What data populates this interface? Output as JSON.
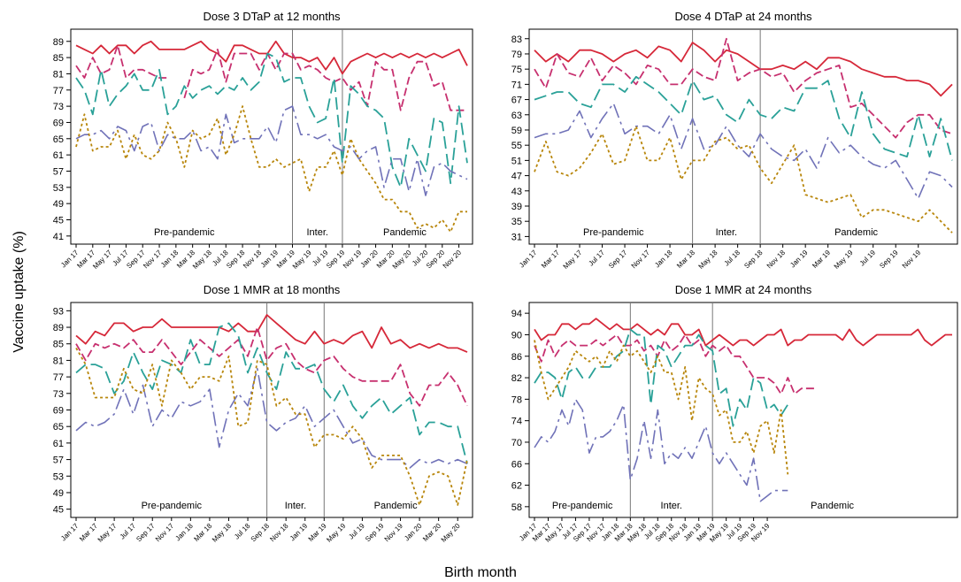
{
  "figure": {
    "ylabel": "Vaccine uptake (%)",
    "xlabel": "Birth month"
  },
  "colors": [
    "#d62839",
    "#c7306f",
    "#2aa198",
    "#7072b8",
    "#b8860b"
  ],
  "chart_data": [
    {
      "type": "line",
      "title": "Dose 3 DTaP at 12 months",
      "yticks": [
        41,
        45,
        49,
        53,
        57,
        61,
        65,
        69,
        73,
        77,
        81,
        85,
        89
      ],
      "ylim": [
        39,
        92
      ],
      "xticks": [
        "Jan 17",
        "Mar 17",
        "May 17",
        "Jul 17",
        "Sep 17",
        "Nov 17",
        "Jan 18",
        "Mar 18",
        "May 18",
        "Jul 18",
        "Sep 18",
        "Nov 18",
        "Jan 19",
        "Mar 19",
        "May 19",
        "Jul 19",
        "Sep 19",
        "Nov 19",
        "Jan 20",
        "Mar 20",
        "May 20",
        "Jul 20",
        "Sep 20",
        "Nov 20"
      ],
      "periods": [
        {
          "label": "Pre-pandemic"
        },
        {
          "label": "Inter."
        },
        {
          "label": "Pandemic"
        }
      ],
      "dividers": [
        26,
        32
      ],
      "series": [
        {
          "values": [
            88,
            87,
            86,
            88,
            86,
            88,
            88,
            86,
            88,
            89,
            87,
            87,
            87,
            87,
            88,
            89,
            87,
            86,
            84,
            88,
            88,
            87,
            86,
            86,
            89,
            86,
            85,
            85,
            84,
            85,
            82,
            85,
            81,
            84,
            85,
            86,
            85,
            86,
            85,
            86,
            85,
            86,
            85,
            86,
            85,
            86,
            87,
            83
          ]
        },
        {
          "values": [
            83,
            80,
            85,
            81,
            82,
            88,
            80,
            82,
            82,
            81,
            80,
            80,
            null,
            75,
            82,
            81,
            82,
            87,
            79,
            86,
            86,
            86,
            82,
            86,
            82,
            86,
            86,
            82,
            83,
            82,
            80,
            79,
            80,
            77,
            79,
            73,
            84,
            82,
            82,
            72,
            80,
            84,
            84,
            78,
            79,
            72,
            72,
            72
          ]
        },
        {
          "values": [
            80,
            77,
            71,
            82,
            73,
            76,
            78,
            81,
            77,
            77,
            82,
            71,
            73,
            78,
            75,
            77,
            78,
            76,
            78,
            77,
            80,
            77,
            79,
            86,
            85,
            79,
            80,
            80,
            73,
            69,
            70,
            80,
            59,
            78,
            76,
            73,
            72,
            70,
            58,
            53,
            65,
            61,
            57,
            70,
            69,
            54,
            73,
            59
          ]
        },
        {
          "values": [
            65,
            66,
            66,
            67,
            65,
            68,
            67,
            62,
            68,
            69,
            62,
            66,
            65,
            65,
            67,
            62,
            63,
            60,
            71,
            64,
            65,
            65,
            65,
            68,
            64,
            72,
            73,
            66,
            66,
            65,
            66,
            63,
            62,
            63,
            60,
            62,
            63,
            53,
            60,
            60,
            52,
            60,
            51,
            58,
            59,
            57,
            56,
            55
          ]
        },
        {
          "values": [
            63,
            71,
            62,
            63,
            63,
            67,
            60,
            66,
            61,
            60,
            62,
            69,
            65,
            58,
            67,
            65,
            66,
            70,
            61,
            66,
            73,
            65,
            58,
            58,
            60,
            58,
            59,
            60,
            52,
            58,
            58,
            62,
            56,
            65,
            60,
            57,
            54,
            50,
            50,
            47,
            47,
            43,
            44,
            43,
            45,
            42,
            47,
            47
          ]
        }
      ]
    },
    {
      "type": "line",
      "title": "Dose 4 DTaP at 24 months",
      "yticks": [
        31,
        35,
        39,
        43,
        47,
        51,
        55,
        59,
        63,
        67,
        71,
        75,
        79,
        83
      ],
      "ylim": [
        29,
        85.5
      ],
      "xticks": [
        "Jan 17",
        "Mar 17",
        "May 17",
        "Jul 17",
        "Sep 17",
        "Nov 17",
        "Jan 18",
        "Mar 18",
        "May 18",
        "Jul 18",
        "Sep 18",
        "Nov 18",
        "Jan 19",
        "Mar 19",
        "May 19",
        "Jul 19",
        "Sep 19",
        "Nov 19"
      ],
      "periods": [
        {
          "label": "Pre-pandemic"
        },
        {
          "label": "Inter."
        },
        {
          "label": "Pandemic"
        }
      ],
      "dividers": [
        14,
        20
      ],
      "series": [
        {
          "values": [
            80,
            77,
            79,
            77,
            80,
            80,
            79,
            77,
            79,
            80,
            78,
            81,
            80,
            77,
            82,
            80,
            77,
            80,
            79,
            77,
            75,
            75,
            76,
            75,
            77,
            75,
            78,
            78,
            77,
            75,
            74,
            73,
            73,
            72,
            72,
            71,
            68,
            71
          ]
        },
        {
          "values": [
            75,
            70,
            79,
            74,
            73,
            78,
            72,
            76,
            74,
            71,
            76,
            75,
            71,
            71,
            75,
            73,
            72,
            83,
            72,
            74,
            75,
            73,
            74,
            69,
            72,
            74,
            75,
            76,
            65,
            66,
            63,
            60,
            57,
            61,
            63,
            63,
            59,
            58
          ]
        },
        {
          "values": [
            67,
            68,
            69,
            69,
            66,
            65,
            71,
            71,
            69,
            73,
            71,
            69,
            66,
            63,
            72,
            67,
            68,
            63,
            61,
            67,
            63,
            62,
            65,
            64,
            70,
            70,
            72,
            62,
            57,
            69,
            58,
            54,
            53,
            52,
            63,
            52,
            62,
            51
          ]
        },
        {
          "values": [
            57,
            58,
            58,
            59,
            64,
            57,
            62,
            66,
            58,
            60,
            60,
            58,
            63,
            54,
            62,
            54,
            55,
            60,
            55,
            52,
            58,
            54,
            52,
            51,
            54,
            49,
            57,
            53,
            55,
            52,
            50,
            49,
            51,
            46,
            41,
            48,
            47,
            44
          ]
        },
        {
          "values": [
            48,
            56,
            48,
            47,
            49,
            53,
            58,
            50,
            51,
            60,
            51,
            51,
            57,
            46,
            51,
            51,
            56,
            57,
            54,
            55,
            49,
            45,
            50,
            55,
            42,
            41,
            40,
            41,
            42,
            36,
            38,
            38,
            37,
            36,
            35,
            38,
            35,
            32
          ]
        }
      ]
    },
    {
      "type": "line",
      "title": "Dose 1 MMR at 18 months",
      "yticks": [
        45,
        49,
        53,
        57,
        61,
        65,
        69,
        73,
        77,
        81,
        85,
        89,
        93
      ],
      "ylim": [
        43,
        95
      ],
      "xticks": [
        "Jan 17",
        "Mar 17",
        "May 17",
        "Jul 17",
        "Sep 17",
        "Nov 17",
        "Jan 18",
        "Mar 18",
        "May 18",
        "Jul 18",
        "Sep 18",
        "Nov 18",
        "Jan 19",
        "Mar 19",
        "May 19",
        "Jul 19",
        "Sep 19",
        "Nov 19",
        "Jan 20",
        "Mar 20",
        "May 20"
      ],
      "periods": [
        {
          "label": "Pre-pandemic"
        },
        {
          "label": "Inter."
        },
        {
          "label": "Pandemic"
        }
      ],
      "dividers": [
        20,
        26
      ],
      "series": [
        {
          "values": [
            87,
            85,
            88,
            87,
            90,
            90,
            88,
            89,
            89,
            91,
            89,
            89,
            89,
            89,
            89,
            89,
            88,
            90,
            88,
            88,
            92,
            90,
            88,
            86,
            85,
            88,
            85,
            86,
            85,
            87,
            88,
            84,
            89,
            85,
            86,
            84,
            85,
            84,
            85,
            84,
            84,
            83
          ]
        },
        {
          "values": [
            85,
            81,
            85,
            84,
            85,
            84,
            86,
            83,
            83,
            86,
            83,
            80,
            83,
            86,
            84,
            82,
            84,
            86,
            82,
            89,
            81,
            84,
            85,
            81,
            79,
            78,
            81,
            82,
            79,
            77,
            76,
            76,
            76,
            76,
            80,
            73,
            70,
            75,
            75,
            78,
            75,
            70
          ]
        },
        {
          "values": [
            78,
            80,
            80,
            79,
            73,
            76,
            83,
            78,
            74,
            81,
            80,
            78,
            86,
            80,
            80,
            89,
            90,
            87,
            78,
            84,
            78,
            74,
            83,
            79,
            79,
            80,
            74,
            71,
            75,
            70,
            67,
            70,
            72,
            68,
            70,
            72,
            63,
            66,
            66,
            65,
            65,
            56
          ]
        },
        {
          "values": [
            64,
            66,
            65,
            66,
            68,
            74,
            68,
            75,
            65,
            69,
            67,
            71,
            70,
            71,
            74,
            60,
            69,
            73,
            70,
            79,
            66,
            64,
            66,
            67,
            70,
            65,
            67,
            69,
            65,
            61,
            62,
            58,
            57,
            57,
            57,
            55,
            57,
            56,
            57,
            56,
            57,
            56
          ]
        },
        {
          "values": [
            84,
            80,
            72,
            72,
            72,
            79,
            74,
            73,
            80,
            70,
            81,
            78,
            74,
            77,
            77,
            76,
            82,
            65,
            66,
            81,
            80,
            70,
            72,
            68,
            68,
            60,
            63,
            63,
            62,
            65,
            62,
            55,
            58,
            58,
            58,
            53,
            46,
            53,
            54,
            53,
            46,
            57
          ]
        }
      ]
    },
    {
      "type": "line",
      "title": "Dose 1 MMR at 24 months",
      "yticks": [
        58,
        62,
        66,
        70,
        74,
        78,
        82,
        86,
        90,
        94
      ],
      "ylim": [
        56,
        96
      ],
      "xticks": [
        "Jan 17",
        "Mar 17",
        "May 17",
        "Jul 17",
        "Sep 17",
        "Nov 17",
        "Jan 18",
        "Mar 18",
        "May 18",
        "Jul 18",
        "Sep 18",
        "Nov 18",
        "Jan 19",
        "Mar 19",
        "May 19",
        "Jul 19",
        "Sep 19",
        "Nov 19"
      ],
      "periods": [
        {
          "label": "Pre-pandemic"
        },
        {
          "label": "Inter."
        },
        {
          "label": "Pandemic"
        }
      ],
      "dividers": [
        14,
        26
      ],
      "series": [
        {
          "values": [
            91,
            89,
            90,
            90,
            92,
            92,
            91,
            92,
            92,
            93,
            92,
            91,
            92,
            91,
            91,
            92,
            91,
            90,
            91,
            90,
            92,
            92,
            90,
            90,
            91,
            88,
            89,
            90,
            89,
            88,
            89,
            89,
            88,
            89,
            90,
            90,
            91,
            88,
            89,
            89,
            90,
            90,
            90,
            90,
            90,
            89,
            91,
            89,
            88,
            89,
            90,
            90,
            90,
            90,
            90,
            90,
            91,
            89,
            88,
            89,
            90,
            90
          ]
        },
        {
          "values": [
            88,
            85,
            89,
            86,
            88,
            89,
            88,
            88,
            88,
            89,
            88,
            89,
            90,
            88,
            88,
            89,
            87,
            88,
            86,
            89,
            87,
            88,
            90,
            88,
            89,
            86,
            88,
            87,
            88,
            86,
            86,
            84,
            82,
            82,
            82,
            81,
            79,
            82,
            79,
            80,
            80,
            80
          ]
        },
        {
          "values": [
            81,
            83,
            83,
            82,
            78,
            83,
            84,
            82,
            82,
            84,
            84,
            84,
            86,
            87,
            91,
            90,
            90,
            77,
            88,
            87,
            84,
            86,
            88,
            88,
            90,
            88,
            87,
            79,
            80,
            73,
            78,
            76,
            82,
            81,
            76,
            77,
            75,
            77
          ]
        },
        {
          "values": [
            69,
            71,
            70,
            72,
            76,
            73,
            78,
            76,
            68,
            71,
            71,
            72,
            74,
            77,
            63,
            67,
            74,
            67,
            76,
            66,
            68,
            67,
            69,
            67,
            70,
            73,
            68,
            66,
            68,
            66,
            64,
            62,
            67,
            59,
            60,
            61,
            61,
            61
          ]
        },
        {
          "values": [
            89,
            83,
            78,
            80,
            82,
            84,
            87,
            86,
            85,
            86,
            84,
            87,
            85,
            88,
            86,
            87,
            85,
            83,
            86,
            83,
            83,
            78,
            84,
            74,
            82,
            80,
            79,
            75,
            76,
            70,
            70,
            72,
            68,
            73,
            74,
            68,
            76,
            64
          ]
        }
      ]
    }
  ]
}
